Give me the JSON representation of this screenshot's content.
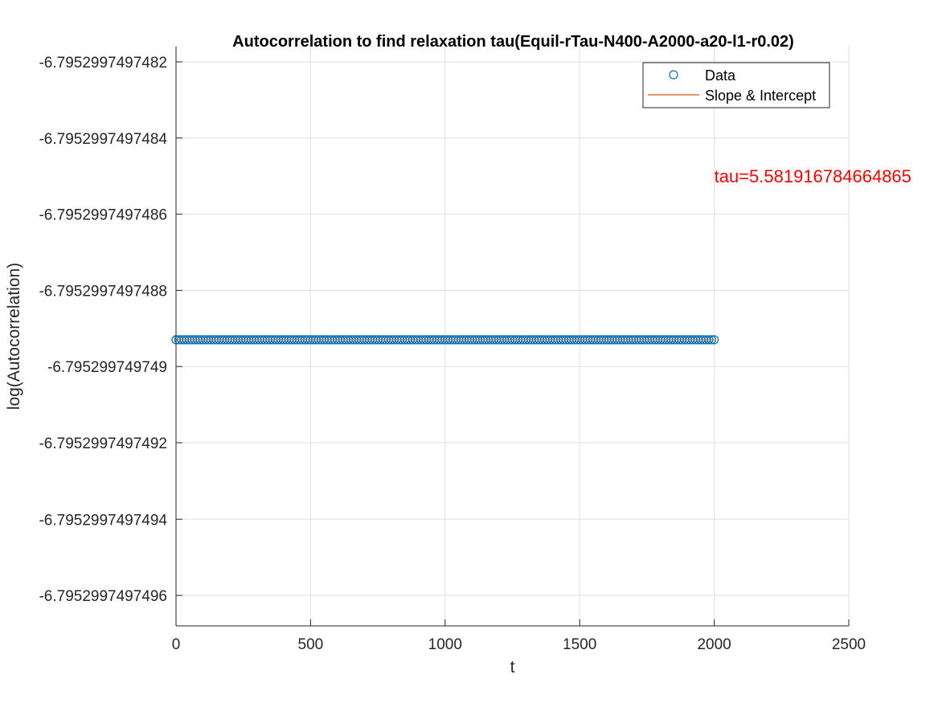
{
  "chart_data": {
    "type": "scatter",
    "title": "Autocorrelation to find relaxation tau(Equil-rTau-N400-A2000-a20-l1-r0.02)",
    "xlabel": "t",
    "ylabel": "log(Autocorrelation)",
    "xlim": [
      0,
      2500
    ],
    "x_ticks": [
      0,
      500,
      1000,
      1500,
      2000,
      2500
    ],
    "x_tick_labels": [
      "0",
      "500",
      "1000",
      "1500",
      "2000",
      "2500"
    ],
    "ylim": [
      -6.79529974974968,
      -6.79529974974816
    ],
    "y_ticks": [
      -6.7952997497482,
      -6.7952997497484,
      -6.7952997497486,
      -6.7952997497488,
      -6.795299749749,
      -6.7952997497492,
      -6.7952997497494,
      -6.7952997497496
    ],
    "y_tick_labels": [
      "-6.7952997497482",
      "-6.7952997497484",
      "-6.7952997497486",
      "-6.7952997497488",
      "-6.795299749749",
      "-6.7952997497492",
      "-6.7952997497494",
      "-6.7952997497496"
    ],
    "grid": true,
    "legend_position": "top-right",
    "series": [
      {
        "name": "Data",
        "kind": "markers",
        "marker": "circle",
        "color": "#0072BD",
        "x_start": 0,
        "x_end": 2000,
        "x_step": 10,
        "y": -6.79529974974893
      },
      {
        "name": "Slope & Intercept",
        "kind": "line",
        "color": "#D95319",
        "x": [
          0,
          2000
        ],
        "y": [
          -6.79529974974893,
          -6.79529974974893
        ]
      }
    ],
    "annotation": {
      "text": "tau=5.581916784664865",
      "color": "#FF0000",
      "x": 2000,
      "y": -6.7952997497485
    }
  }
}
